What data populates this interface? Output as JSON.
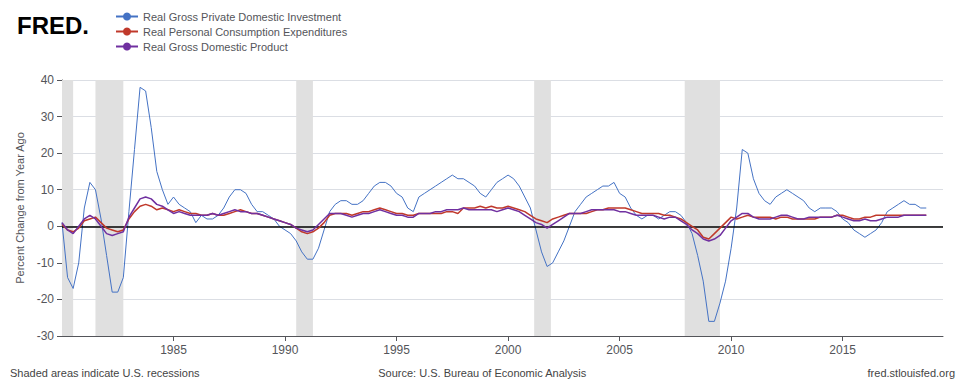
{
  "chart_data": {
    "type": "line",
    "title": "FRED.",
    "ylabel": "Percent Change from Year Ago",
    "annotations": [
      "Shaded areas indicate U.S. recessions",
      "Source: U.S. Bureau of Economic Analysis",
      "fred.stlouisfed.org"
    ],
    "x": [
      1980.0,
      1980.25,
      1980.5,
      1980.75,
      1981.0,
      1981.25,
      1981.5,
      1981.75,
      1982.0,
      1982.25,
      1982.5,
      1982.75,
      1983.0,
      1983.25,
      1983.5,
      1983.75,
      1984.0,
      1984.25,
      1984.5,
      1984.75,
      1985.0,
      1985.25,
      1985.5,
      1985.75,
      1986.0,
      1986.25,
      1986.5,
      1986.75,
      1987.0,
      1987.25,
      1987.5,
      1987.75,
      1988.0,
      1988.25,
      1988.5,
      1988.75,
      1989.0,
      1989.25,
      1989.5,
      1989.75,
      1990.0,
      1990.25,
      1990.5,
      1990.75,
      1991.0,
      1991.25,
      1991.5,
      1991.75,
      1992.0,
      1992.25,
      1992.5,
      1992.75,
      1993.0,
      1993.25,
      1993.5,
      1993.75,
      1994.0,
      1994.25,
      1994.5,
      1994.75,
      1995.0,
      1995.25,
      1995.5,
      1995.75,
      1996.0,
      1996.25,
      1996.5,
      1996.75,
      1997.0,
      1997.25,
      1997.5,
      1997.75,
      1998.0,
      1998.25,
      1998.5,
      1998.75,
      1999.0,
      1999.25,
      1999.5,
      1999.75,
      2000.0,
      2000.25,
      2000.5,
      2000.75,
      2001.0,
      2001.25,
      2001.5,
      2001.75,
      2002.0,
      2002.25,
      2002.5,
      2002.75,
      2003.0,
      2003.25,
      2003.5,
      2003.75,
      2004.0,
      2004.25,
      2004.5,
      2004.75,
      2005.0,
      2005.25,
      2005.5,
      2005.75,
      2006.0,
      2006.25,
      2006.5,
      2006.75,
      2007.0,
      2007.25,
      2007.5,
      2007.75,
      2008.0,
      2008.25,
      2008.5,
      2008.75,
      2009.0,
      2009.25,
      2009.5,
      2009.75,
      2010.0,
      2010.25,
      2010.5,
      2010.75,
      2011.0,
      2011.25,
      2011.5,
      2011.75,
      2012.0,
      2012.25,
      2012.5,
      2012.75,
      2013.0,
      2013.25,
      2013.5,
      2013.75,
      2014.0,
      2014.25,
      2014.5,
      2014.75,
      2015.0,
      2015.25,
      2015.5,
      2015.75,
      2016.0,
      2016.25,
      2016.5,
      2016.75,
      2017.0,
      2017.25,
      2017.5,
      2017.75,
      2018.0,
      2018.25,
      2018.5,
      2018.75
    ],
    "series": [
      {
        "name": "Real Gross Private Domestic Investment",
        "color": "#4472c4",
        "values": [
          1.0,
          -14.0,
          -17.0,
          -10.0,
          5.0,
          12.0,
          10.0,
          2.0,
          -8.0,
          -18.0,
          -18.0,
          -14.0,
          4.0,
          21.0,
          38.0,
          37.0,
          27.0,
          15.0,
          10.0,
          6.0,
          8.0,
          6.0,
          5.0,
          4.0,
          1.0,
          3.0,
          2.0,
          2.0,
          3.0,
          5.0,
          8.0,
          10.0,
          10.0,
          9.0,
          6.0,
          4.0,
          4.0,
          3.0,
          2.0,
          0.0,
          -1.0,
          -2.0,
          -4.0,
          -7.0,
          -9.0,
          -9.0,
          -6.0,
          -1.0,
          4.0,
          6.0,
          7.0,
          7.0,
          6.0,
          6.0,
          7.0,
          9.0,
          11.0,
          12.0,
          12.0,
          11.0,
          9.0,
          8.0,
          5.0,
          4.0,
          8.0,
          9.0,
          10.0,
          11.0,
          12.0,
          13.0,
          14.0,
          13.0,
          13.0,
          12.0,
          11.0,
          9.0,
          8.0,
          10.0,
          12.0,
          13.0,
          14.0,
          13.0,
          11.0,
          8.0,
          5.0,
          -1.0,
          -7.0,
          -11.0,
          -10.0,
          -7.0,
          -4.0,
          0.0,
          4.0,
          6.0,
          8.0,
          9.0,
          10.0,
          11.0,
          11.0,
          12.0,
          9.0,
          8.0,
          5.0,
          3.0,
          2.0,
          3.0,
          3.0,
          2.0,
          3.0,
          4.0,
          4.0,
          3.0,
          1.0,
          -2.0,
          -8.0,
          -15.0,
          -26.0,
          -26.0,
          -21.0,
          -15.0,
          -6.0,
          5.0,
          21.0,
          20.0,
          13.0,
          9.0,
          7.0,
          6.0,
          8.0,
          9.0,
          10.0,
          9.0,
          8.0,
          7.0,
          5.0,
          4.0,
          5.0,
          5.0,
          5.0,
          4.0,
          2.0,
          1.0,
          -1.0,
          -2.0,
          -3.0,
          -2.0,
          -1.0,
          1.0,
          4.0,
          5.0,
          6.0,
          7.0,
          6.0,
          6.0,
          5.0,
          5.0
        ]
      },
      {
        "name": "Real Personal Consumption Expenditures",
        "color": "#c0392b",
        "values": [
          0.5,
          -1.0,
          -1.5,
          -0.5,
          1.5,
          2.0,
          2.5,
          1.0,
          -0.5,
          -1.0,
          -1.5,
          -1.0,
          2.0,
          4.0,
          5.5,
          6.0,
          5.5,
          4.5,
          5.0,
          4.5,
          4.0,
          4.5,
          4.0,
          3.5,
          3.5,
          3.0,
          3.0,
          3.5,
          3.0,
          3.0,
          3.5,
          4.0,
          4.5,
          4.0,
          3.5,
          3.5,
          3.0,
          2.5,
          2.0,
          1.5,
          1.0,
          0.5,
          -0.5,
          -1.5,
          -2.0,
          -1.5,
          -0.5,
          1.0,
          3.0,
          3.5,
          3.5,
          3.5,
          3.0,
          3.5,
          4.0,
          4.0,
          4.5,
          5.0,
          4.5,
          4.0,
          3.5,
          3.5,
          3.0,
          3.0,
          3.5,
          3.5,
          3.5,
          3.5,
          3.5,
          4.0,
          4.0,
          3.5,
          5.0,
          5.0,
          5.0,
          5.5,
          5.0,
          5.5,
          5.0,
          5.0,
          5.5,
          5.0,
          4.5,
          4.0,
          3.0,
          2.0,
          1.5,
          1.0,
          2.0,
          2.5,
          3.0,
          3.5,
          3.5,
          3.5,
          3.5,
          4.0,
          4.5,
          4.5,
          5.0,
          5.0,
          5.0,
          5.0,
          4.5,
          4.0,
          3.5,
          3.5,
          3.5,
          3.5,
          3.0,
          3.0,
          2.5,
          2.0,
          1.0,
          0.0,
          -1.0,
          -3.0,
          -3.5,
          -2.0,
          -0.5,
          1.0,
          2.5,
          2.0,
          2.5,
          3.0,
          2.5,
          2.5,
          2.5,
          2.5,
          2.0,
          2.5,
          2.5,
          2.0,
          2.0,
          2.0,
          2.0,
          2.0,
          2.5,
          2.5,
          2.5,
          3.0,
          3.0,
          2.5,
          2.0,
          2.0,
          2.5,
          2.5,
          3.0,
          3.0,
          3.0,
          3.0,
          3.0,
          3.0,
          3.0,
          3.0,
          3.0,
          3.0
        ]
      },
      {
        "name": "Real Gross Domestic Product",
        "color": "#7030a0",
        "values": [
          1.0,
          -1.0,
          -2.0,
          0.0,
          2.0,
          3.0,
          2.0,
          0.0,
          -2.0,
          -2.5,
          -2.0,
          -1.5,
          2.5,
          5.0,
          7.5,
          8.0,
          7.5,
          6.0,
          5.5,
          4.5,
          3.5,
          4.0,
          3.5,
          3.0,
          3.0,
          3.0,
          3.0,
          3.5,
          3.0,
          3.5,
          4.0,
          4.5,
          4.0,
          4.0,
          3.5,
          3.5,
          3.0,
          2.5,
          2.0,
          1.5,
          1.0,
          0.5,
          -0.5,
          -1.0,
          -1.5,
          -1.0,
          0.5,
          2.0,
          3.5,
          3.5,
          3.5,
          3.0,
          2.5,
          3.0,
          3.5,
          3.5,
          4.0,
          4.5,
          4.0,
          3.5,
          3.0,
          3.0,
          2.5,
          2.5,
          3.5,
          3.5,
          3.5,
          4.0,
          4.0,
          4.5,
          4.5,
          4.5,
          5.0,
          4.5,
          4.5,
          4.5,
          4.5,
          4.5,
          4.0,
          4.5,
          5.0,
          4.5,
          4.0,
          3.0,
          2.0,
          1.0,
          0.5,
          -0.5,
          0.5,
          1.5,
          2.5,
          3.5,
          3.5,
          3.5,
          4.0,
          4.5,
          4.5,
          4.5,
          4.5,
          4.5,
          4.0,
          4.0,
          3.5,
          3.0,
          3.0,
          3.0,
          3.0,
          2.5,
          2.0,
          2.5,
          2.5,
          1.5,
          0.5,
          -1.0,
          -2.0,
          -3.5,
          -4.0,
          -3.5,
          -2.5,
          -0.5,
          1.5,
          2.5,
          3.5,
          3.5,
          2.5,
          2.0,
          2.0,
          2.0,
          2.5,
          3.0,
          3.0,
          2.5,
          2.0,
          2.0,
          2.5,
          2.5,
          2.5,
          2.5,
          2.5,
          3.0,
          2.5,
          2.0,
          1.5,
          1.5,
          2.0,
          1.5,
          1.5,
          2.0,
          2.5,
          2.5,
          2.5,
          3.0,
          3.0,
          3.0,
          3.0,
          3.0
        ]
      }
    ],
    "xlim": [
      1980.0,
      2019.5
    ],
    "xticks": [
      1985,
      1990,
      1995,
      2000,
      2005,
      2010,
      2015
    ],
    "ylim": [
      -30,
      40
    ],
    "yticks": [
      -30,
      -20,
      -10,
      0,
      10,
      20,
      30,
      40
    ],
    "grid": true,
    "legend": "upper left",
    "recessions": {
      "color": "#e0e0e0",
      "spans": [
        [
          1980.0,
          1980.5
        ],
        [
          1981.5,
          1982.75
        ],
        [
          1990.5,
          1991.25
        ],
        [
          2001.17,
          2001.92
        ],
        [
          2007.92,
          2009.5
        ]
      ]
    },
    "zero_line": {
      "value": 0,
      "color": "#000000"
    }
  }
}
